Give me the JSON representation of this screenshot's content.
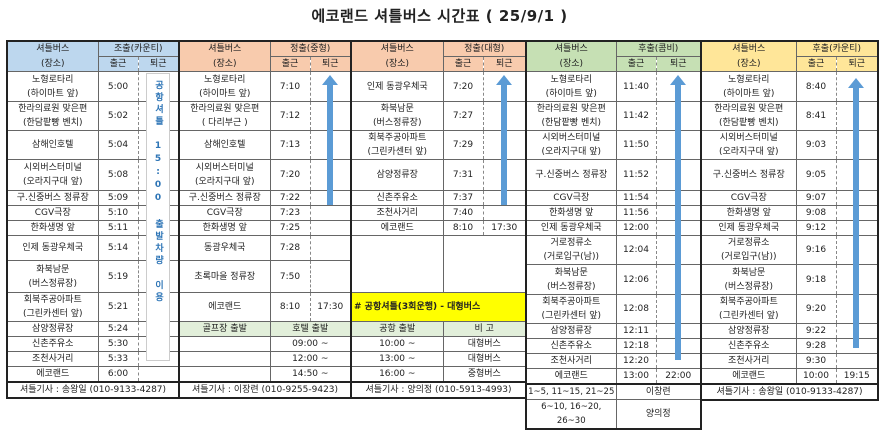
{
  "title": "에코랜드 셔틀버스 시간표 ( 25/9/1 )",
  "colors": {
    "county_blue": "#bdd7ee",
    "middle_orange": "#f8cbad",
    "combi_green": "#c6e0b4",
    "county2_yellow": "#ffe699",
    "notice_yellow": "#ffff00",
    "sub_header_green": "#e2efda",
    "arrow_blue": "#5b9bd5"
  },
  "blocks": [
    {
      "header": {
        "title": "셔틀버스",
        "sub": "(장소)",
        "route": "조출(카운티)",
        "out": "출근",
        "in": "퇴근"
      },
      "stops": [
        {
          "name": "노형로타리\n(하이마트 앞)",
          "out": "5:00",
          "in": ""
        },
        {
          "name": "한라의료원 맞은편\n(한담팥빵 벤치)",
          "out": "5:02",
          "in": ""
        },
        {
          "name": "삼해인호텔",
          "out": "5:04",
          "in": ""
        },
        {
          "name": "시외버스터미널\n(오라지구대 앞)",
          "out": "5:08",
          "in": ""
        },
        {
          "name": "구.신중버스 정류장",
          "out": "5:09",
          "in": ""
        },
        {
          "name": "CGV극장",
          "out": "5:10",
          "in": ""
        },
        {
          "name": "한화생명 앞",
          "out": "5:11",
          "in": ""
        },
        {
          "name": "인제 동광우체국",
          "out": "5:14",
          "in": ""
        },
        {
          "name": "화북남문\n(버스정류장)",
          "out": "5:19",
          "in": ""
        },
        {
          "name": "회북주공아파트\n(그린카센터 앞)",
          "out": "5:21",
          "in": ""
        },
        {
          "name": "삼양정류장",
          "out": "5:24",
          "in": ""
        },
        {
          "name": "신촌주유소",
          "out": "5:30",
          "in": ""
        },
        {
          "name": "조천사거리",
          "out": "5:33",
          "in": ""
        },
        {
          "name": "에코랜드",
          "out": "6:00",
          "in": ""
        }
      ],
      "return_note": "공항셔틀 15:00 출발차량 이용",
      "footer": [
        "셔틀기사 : 송왕일 (010-9133-4287)"
      ]
    },
    {
      "header": {
        "title": "셔틀버스",
        "sub": "(장소)",
        "route": "정출(중형)",
        "out": "출근",
        "in": "퇴근"
      },
      "stops": [
        {
          "name": "노형로타리\n(하이마트 앞)",
          "out": "7:10",
          "in": ""
        },
        {
          "name": "한라의료원 맞은편\n( 다리부근 )",
          "out": "7:12",
          "in": ""
        },
        {
          "name": "삼해인호텔",
          "out": "7:13",
          "in": ""
        },
        {
          "name": "시외버스터미널\n(오라지구대 앞)",
          "out": "7:20",
          "in": ""
        },
        {
          "name": "구.신중버스 정류장",
          "out": "7:22",
          "in": ""
        },
        {
          "name": "CGV극장",
          "out": "7:23",
          "in": ""
        },
        {
          "name": "한화생명 앞",
          "out": "7:25",
          "in": ""
        },
        {
          "name": "동광우체국",
          "out": "7:28",
          "in": ""
        },
        {
          "name": "초록마을 정류장",
          "out": "7:50",
          "in": ""
        },
        {
          "name": "에코랜드",
          "out": "8:10",
          "in": "17:30"
        }
      ],
      "extra_header": [
        "골프장 출발",
        "호텔 출발"
      ],
      "extra_rows": [
        [
          "",
          "09:00 ~"
        ],
        [
          "",
          "12:00 ~"
        ],
        [
          "",
          "14:50 ~"
        ]
      ],
      "footer": [
        "셔틀기사 : 이장련 (010-9255-9423)"
      ]
    },
    {
      "header": {
        "title": "셔틀버스",
        "sub": "(장소)",
        "route": "정출(대형)",
        "out": "출근",
        "in": "퇴근"
      },
      "stops": [
        {
          "name": "인제 동광우체국",
          "out": "7:20",
          "in": ""
        },
        {
          "name": "화북남문\n(버스정류장)",
          "out": "7:27",
          "in": ""
        },
        {
          "name": "회북주공아파트\n(그린카센터 앞)",
          "out": "7:29",
          "in": ""
        },
        {
          "name": "삼양정류장",
          "out": "7:31",
          "in": ""
        },
        {
          "name": "신촌주유소",
          "out": "7:37",
          "in": ""
        },
        {
          "name": "조천사거리",
          "out": "7:40",
          "in": ""
        },
        {
          "name": "에코랜드",
          "out": "8:10",
          "in": "17:30"
        }
      ],
      "notice": "# 공항셔틀(3회운행) - 대형버스",
      "extra_header": [
        "공항 출발",
        "비     고"
      ],
      "extra_rows": [
        [
          "10:00 ~",
          "대형버스"
        ],
        [
          "13:00 ~",
          "대형버스"
        ],
        [
          "16:00 ~",
          "중형버스"
        ]
      ],
      "footer": [
        "셔틀기사 : 양의정 (010-5913-4993)"
      ]
    },
    {
      "header": {
        "title": "셔틀버스",
        "sub": "(장소)",
        "route": "후출(콤비)",
        "out": "출근",
        "in": "퇴근"
      },
      "stops": [
        {
          "name": "노형로타리\n(하이마트 앞)",
          "out": "11:40",
          "in": ""
        },
        {
          "name": "한라의료원 맞은편\n(한담팥빵 벤치)",
          "out": "11:42",
          "in": ""
        },
        {
          "name": "시외버스터미널\n(오라지구대 앞)",
          "out": "11:50",
          "in": ""
        },
        {
          "name": "구.신중버스 정류장",
          "out": "11:52",
          "in": ""
        },
        {
          "name": "CGV극장",
          "out": "11:54",
          "in": ""
        },
        {
          "name": "한화생명 앞",
          "out": "11:56",
          "in": ""
        },
        {
          "name": "인제 동광우체국",
          "out": "12:00",
          "in": ""
        },
        {
          "name": "거로정류소\n(거로입구(남))",
          "out": "12:04",
          "in": ""
        },
        {
          "name": "화북남문\n(버스정류장)",
          "out": "12:06",
          "in": ""
        },
        {
          "name": "회북주공아파트\n(그린카센터 앞)",
          "out": "12:08",
          "in": ""
        },
        {
          "name": "삼양정류장",
          "out": "12:11",
          "in": ""
        },
        {
          "name": "신촌주유소",
          "out": "12:18",
          "in": ""
        },
        {
          "name": "조천사거리",
          "out": "12:20",
          "in": ""
        },
        {
          "name": "에코랜드",
          "out": "13:00",
          "in": "22:00"
        }
      ],
      "driver_rotation": [
        [
          "1~5, 11~15, 21~25",
          "이창련"
        ],
        [
          "6~10, 16~20, 26~30",
          "양의정"
        ]
      ]
    },
    {
      "header": {
        "title": "셔틀버스",
        "sub": "(장소)",
        "route": "후출(카운티)",
        "out": "출근",
        "in": "퇴근"
      },
      "stops": [
        {
          "name": "노형로타리\n(하이마트 앞)",
          "out": "8:40",
          "in": ""
        },
        {
          "name": "한라의료원 맞은편\n(한담팥빵 벤치)",
          "out": "8:41",
          "in": ""
        },
        {
          "name": "시외버스터미널\n(오라지구대 앞)",
          "out": "9:03",
          "in": ""
        },
        {
          "name": "구.신중버스 정류장",
          "out": "9:05",
          "in": ""
        },
        {
          "name": "CGV극장",
          "out": "9:07",
          "in": ""
        },
        {
          "name": "한화생명 앞",
          "out": "9:08",
          "in": ""
        },
        {
          "name": "인제 동광우체국",
          "out": "9:12",
          "in": ""
        },
        {
          "name": "거로정류소\n(거로입구(남))",
          "out": "9:16",
          "in": ""
        },
        {
          "name": "화북남문\n(버스정류장)",
          "out": "9:18",
          "in": ""
        },
        {
          "name": "회북주공아파트\n(그린카센터 앞)",
          "out": "9:20",
          "in": ""
        },
        {
          "name": "삼양정류장",
          "out": "9:22",
          "in": ""
        },
        {
          "name": "신촌주유소",
          "out": "9:28",
          "in": ""
        },
        {
          "name": "조천사거리",
          "out": "9:30",
          "in": ""
        },
        {
          "name": "에코랜드",
          "out": "10:00",
          "in": "19:15"
        }
      ],
      "footer": [
        "셔틀기사 : 송왕일 (010-9133-4287)"
      ]
    }
  ]
}
